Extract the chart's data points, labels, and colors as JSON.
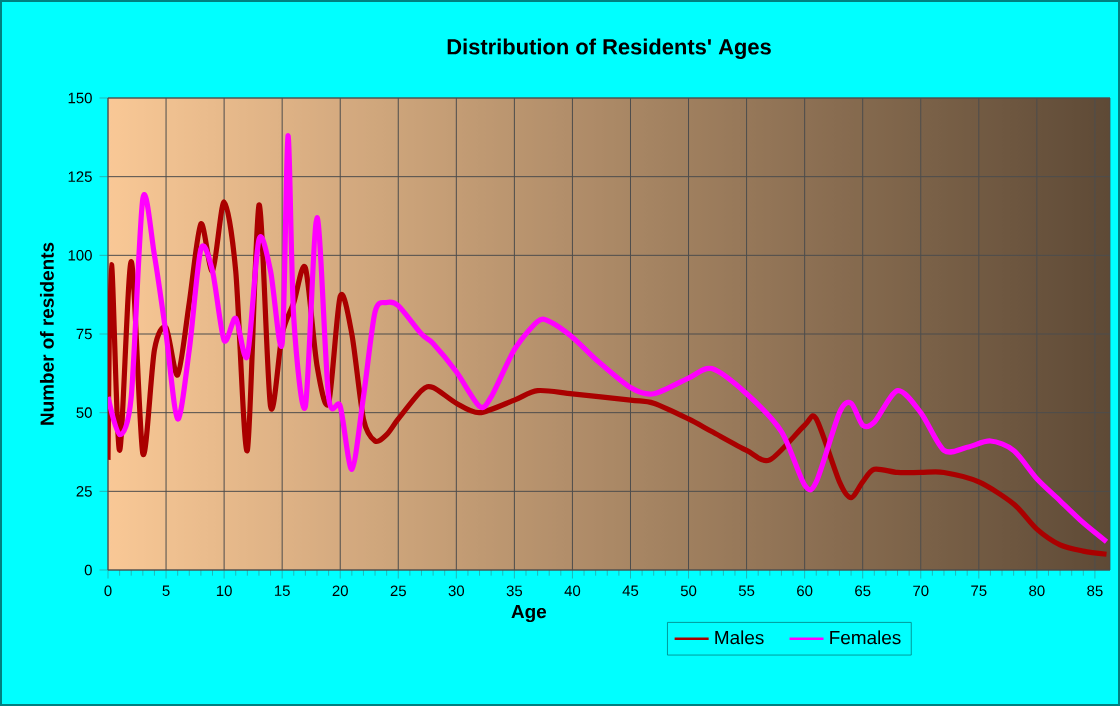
{
  "chart_data": {
    "type": "line",
    "title": "Distribution of Residents' Ages",
    "xlabel": "Age",
    "ylabel": "Number of residents",
    "xlim": [
      0,
      86.3
    ],
    "ylim": [
      0,
      150
    ],
    "xticks": [
      0,
      5,
      10,
      15,
      20,
      25,
      30,
      35,
      40,
      45,
      50,
      55,
      60,
      65,
      70,
      75,
      80,
      85
    ],
    "yticks": [
      0,
      25,
      50,
      75,
      100,
      125,
      150
    ],
    "grid": true,
    "legend": "bottom",
    "marker": "none",
    "line_style": "solid",
    "series": [
      {
        "name": "Males",
        "color": "#aa0000",
        "x": [
          0,
          0.3,
          1,
          2,
          3,
          4,
          5,
          6,
          7,
          8,
          9,
          10,
          11,
          12,
          13,
          14,
          15,
          16,
          17,
          18,
          19,
          20,
          21,
          22,
          23,
          24,
          25,
          27,
          28,
          30,
          32,
          35,
          37,
          40,
          45,
          47,
          50,
          52,
          55,
          57,
          60,
          61,
          63,
          64,
          65,
          66,
          68,
          70,
          72,
          75,
          78,
          80,
          82,
          84,
          86
        ],
        "values": [
          35,
          97,
          38,
          98,
          37,
          70,
          77,
          62,
          85,
          110,
          95,
          117,
          95,
          38,
          116,
          52,
          75,
          85,
          96,
          65,
          53,
          87,
          75,
          48,
          41,
          43,
          48,
          57,
          58,
          53,
          50,
          54,
          57,
          56,
          54,
          53,
          48,
          44,
          38,
          35,
          46,
          48,
          28,
          23,
          28,
          32,
          31,
          31,
          31,
          28,
          21,
          13,
          8,
          6,
          5
        ]
      },
      {
        "name": "Females",
        "color": "#ff00ff",
        "x": [
          0,
          1,
          2,
          3,
          4,
          5,
          6,
          7,
          8,
          9,
          10,
          11,
          12,
          13,
          14,
          15,
          15.5,
          16,
          17,
          18,
          19,
          20,
          21,
          22,
          23,
          24,
          25,
          27,
          28,
          30,
          32,
          33,
          35,
          37,
          38,
          40,
          42,
          45,
          47,
          50,
          52,
          55,
          58,
          60,
          61,
          63,
          64,
          65,
          66,
          68,
          70,
          72,
          74,
          76,
          78,
          80,
          82,
          84,
          86
        ],
        "values": [
          55,
          43,
          55,
          118,
          100,
          75,
          48,
          70,
          102,
          95,
          73,
          80,
          68,
          105,
          95,
          72,
          138,
          80,
          52,
          112,
          55,
          52,
          32,
          55,
          82,
          85,
          84,
          75,
          72,
          63,
          52,
          55,
          70,
          79,
          79,
          74,
          67,
          58,
          56,
          61,
          64,
          56,
          44,
          27,
          28,
          50,
          53,
          46,
          47,
          57,
          50,
          38,
          39,
          41,
          38,
          29,
          22,
          15,
          9
        ]
      }
    ]
  }
}
